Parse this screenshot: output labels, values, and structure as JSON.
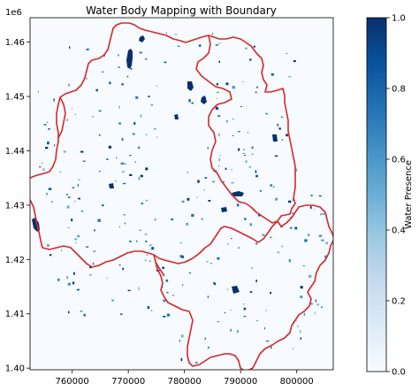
{
  "title": "Water Body Mapping with Boundary",
  "colorbar": {
    "label": "Water Presence",
    "ticks": [
      "0.0",
      "0.2",
      "0.4",
      "0.6",
      "0.8",
      "1.0"
    ],
    "colormap": [
      "#f7fbff",
      "#deebf7",
      "#c6dbef",
      "#9ecae1",
      "#6baed6",
      "#4292c6",
      "#2171b5",
      "#08519c",
      "#08306b"
    ]
  },
  "map": {
    "background_color": "#f7fbff",
    "boundary_color": "#d62728",
    "water_color": "#08306b",
    "y_offset_label": "1e6"
  },
  "chart_data": {
    "type": "heatmap",
    "title": "Water Body Mapping with Boundary",
    "xlabel": "",
    "ylabel": "",
    "xlim": [
      752500,
      806500
    ],
    "ylim": [
      1399700,
      1464500
    ],
    "x_ticks": [
      760000,
      770000,
      780000,
      790000,
      800000
    ],
    "x_tick_labels": [
      "760000",
      "770000",
      "780000",
      "790000",
      "800000"
    ],
    "y_ticks": [
      1400000,
      1410000,
      1420000,
      1430000,
      1440000,
      1450000,
      1460000
    ],
    "y_tick_labels": [
      "1.40",
      "1.41",
      "1.42",
      "1.43",
      "1.44",
      "1.45",
      "1.46"
    ],
    "y_offset": "1e6",
    "value_range": [
      0.0,
      1.0
    ],
    "colorbar_label": "Water Presence",
    "colorbar_ticks": [
      0.0,
      0.2,
      0.4,
      0.6,
      0.8,
      1.0
    ]
  }
}
